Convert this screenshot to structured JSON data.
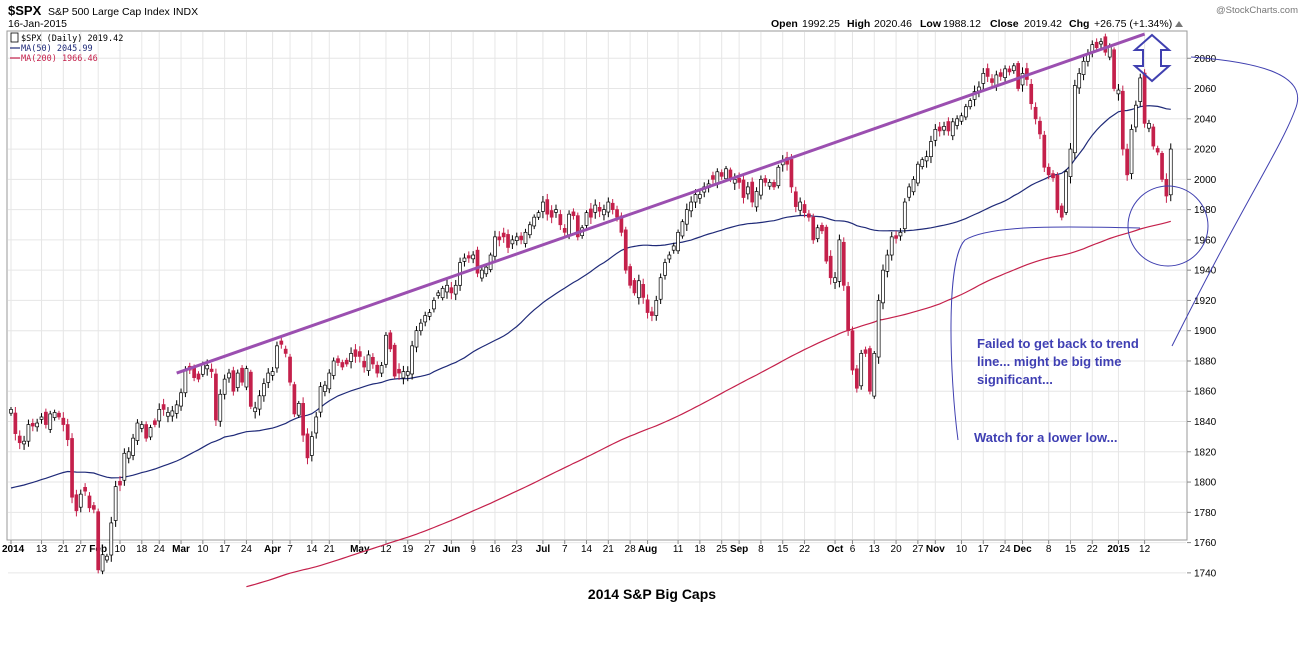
{
  "header": {
    "symbol": "$SPX",
    "name": "S&P 500 Large Cap Index",
    "exchange": "INDX",
    "date": "16-Jan-2015",
    "watermark": "@StockCharts.com",
    "open_label": "Open",
    "open": "1992.25",
    "high_label": "High",
    "high": "2020.46",
    "low_label": "Low",
    "low": "1988.12",
    "close_label": "Close",
    "close": "2019.42",
    "chg_label": "Chg",
    "chg": "+26.75 (+1.34%)"
  },
  "legend": {
    "price": "$SPX (Daily) 2019.42",
    "ma50": "MA(50) 2045.99",
    "ma200": "MA(200) 1966.46"
  },
  "annotations": {
    "line1": "Failed to get back to trend",
    "line2": "line... might be big time",
    "line3": "significant...",
    "line4": "Watch for a lower low..."
  },
  "caption": "2014 S&P Big Caps",
  "colors": {
    "up": "#ffffff",
    "down": "#c4204b",
    "ma50": "#1f2a78",
    "ma200": "#c4204b",
    "trend": "#9b4fb0",
    "annotation": "#3f3fb3",
    "arrow": "#4040b0",
    "grid": "#e6e6e6"
  },
  "chart_data": {
    "type": "candlestick",
    "ylim": [
      1730,
      2100
    ],
    "y_ticks": [
      1740,
      1760,
      1780,
      1800,
      1820,
      1840,
      1860,
      1880,
      1900,
      1920,
      1940,
      1960,
      1980,
      2000,
      2020,
      2040,
      2060,
      2080
    ],
    "x_ticks": [
      {
        "label": "2014",
        "i": 0,
        "month": true
      },
      {
        "label": "13",
        "i": 7
      },
      {
        "label": "21",
        "i": 12
      },
      {
        "label": "27",
        "i": 16
      },
      {
        "label": "Feb",
        "i": 20,
        "month": true
      },
      {
        "label": "10",
        "i": 25
      },
      {
        "label": "18",
        "i": 30
      },
      {
        "label": "24",
        "i": 34
      },
      {
        "label": "Mar",
        "i": 39,
        "month": true
      },
      {
        "label": "10",
        "i": 44
      },
      {
        "label": "17",
        "i": 49
      },
      {
        "label": "24",
        "i": 54
      },
      {
        "label": "Apr",
        "i": 60,
        "month": true
      },
      {
        "label": "7",
        "i": 64
      },
      {
        "label": "14",
        "i": 69
      },
      {
        "label": "21",
        "i": 73
      },
      {
        "label": "May",
        "i": 80,
        "month": true
      },
      {
        "label": "12",
        "i": 86
      },
      {
        "label": "19",
        "i": 91
      },
      {
        "label": "27",
        "i": 96
      },
      {
        "label": "Jun",
        "i": 101,
        "month": true
      },
      {
        "label": "9",
        "i": 106
      },
      {
        "label": "16",
        "i": 111
      },
      {
        "label": "23",
        "i": 116
      },
      {
        "label": "Jul",
        "i": 122,
        "month": true
      },
      {
        "label": "7",
        "i": 127
      },
      {
        "label": "14",
        "i": 132
      },
      {
        "label": "21",
        "i": 137
      },
      {
        "label": "28",
        "i": 142
      },
      {
        "label": "Aug",
        "i": 146,
        "month": true
      },
      {
        "label": "11",
        "i": 153
      },
      {
        "label": "18",
        "i": 158
      },
      {
        "label": "25",
        "i": 163
      },
      {
        "label": "Sep",
        "i": 167,
        "month": true
      },
      {
        "label": "8",
        "i": 172
      },
      {
        "label": "15",
        "i": 177
      },
      {
        "label": "22",
        "i": 182
      },
      {
        "label": "Oct",
        "i": 189,
        "month": true
      },
      {
        "label": "6",
        "i": 193
      },
      {
        "label": "13",
        "i": 198
      },
      {
        "label": "20",
        "i": 203
      },
      {
        "label": "27",
        "i": 208
      },
      {
        "label": "Nov",
        "i": 212,
        "month": true
      },
      {
        "label": "10",
        "i": 218
      },
      {
        "label": "17",
        "i": 223
      },
      {
        "label": "24",
        "i": 228
      },
      {
        "label": "Dec",
        "i": 232,
        "month": true
      },
      {
        "label": "8",
        "i": 238
      },
      {
        "label": "15",
        "i": 243
      },
      {
        "label": "22",
        "i": 248
      },
      {
        "label": "2015",
        "i": 254,
        "month": true
      },
      {
        "label": "12",
        "i": 260
      }
    ],
    "closes": [
      1848,
      1832,
      1826,
      1827,
      1838,
      1837,
      1839,
      1843,
      1838,
      1845,
      1846,
      1843,
      1838,
      1828,
      1790,
      1781,
      1792,
      1794,
      1783,
      1782,
      1742,
      1752,
      1751,
      1773,
      1797,
      1798,
      1819,
      1820,
      1829,
      1839,
      1838,
      1829,
      1836,
      1838,
      1848,
      1848,
      1846,
      1847,
      1851,
      1859,
      1874,
      1874,
      1869,
      1868,
      1878,
      1877,
      1873,
      1841,
      1858,
      1868,
      1872,
      1860,
      1872,
      1866,
      1875,
      1850,
      1849,
      1857,
      1865,
      1872,
      1873,
      1890,
      1891,
      1885,
      1866,
      1845,
      1852,
      1831,
      1816,
      1830,
      1843,
      1863,
      1864,
      1872,
      1880,
      1879,
      1876,
      1878,
      1885,
      1883,
      1883,
      1876,
      1884,
      1878,
      1872,
      1877,
      1897,
      1888,
      1870,
      1872,
      1873,
      1873,
      1890,
      1900,
      1905,
      1910,
      1912,
      1920,
      1925,
      1928,
      1930,
      1925,
      1930,
      1945,
      1948,
      1948,
      1950,
      1938,
      1940,
      1942,
      1950,
      1962,
      1960,
      1962,
      1955,
      1960,
      1962,
      1960,
      1965,
      1970,
      1975,
      1978,
      1985,
      1977,
      1975,
      1980,
      1970,
      1965,
      1977,
      1976,
      1962,
      1968,
      1978,
      1975,
      1983,
      1979,
      1980,
      1985,
      1980,
      1975,
      1965,
      1940,
      1930,
      1925,
      1933,
      1922,
      1912,
      1910,
      1920,
      1935,
      1945,
      1950,
      1956,
      1965,
      1972,
      1980,
      1985,
      1990,
      1990,
      1995,
      1997,
      2000,
      2005,
      2002,
      2007,
      2000,
      2000,
      1998,
      1988,
      1995,
      1985,
      1992,
      2000,
      1998,
      1998,
      1995,
      2008,
      2012,
      2010,
      1995,
      1982,
      1985,
      1978,
      1975,
      1960,
      1968,
      1966,
      1946,
      1935,
      1935,
      1960,
      1930,
      1900,
      1874,
      1862,
      1885,
      1885,
      1860,
      1885,
      1920,
      1940,
      1950,
      1962,
      1961,
      1965,
      1985,
      1995,
      2000,
      2010,
      2013,
      2015,
      2025,
      2033,
      2032,
      2035,
      2032,
      2038,
      2040,
      2042,
      2048,
      2052,
      2058,
      2061,
      2070,
      2068,
      2064,
      2069,
      2068,
      2073,
      2071,
      2075,
      2060,
      2070,
      2066,
      2050,
      2040,
      2030,
      2008,
      2003,
      2001,
      1980,
      1975,
      2005,
      2020,
      2062,
      2070,
      2078,
      2083,
      2089,
      2087,
      2091,
      2084,
      2088,
      2060,
      2059,
      2020,
      2003,
      2033,
      2049,
      2067,
      2037,
      2037,
      2022,
      2018,
      2000,
      1989,
      2020
    ]
  }
}
